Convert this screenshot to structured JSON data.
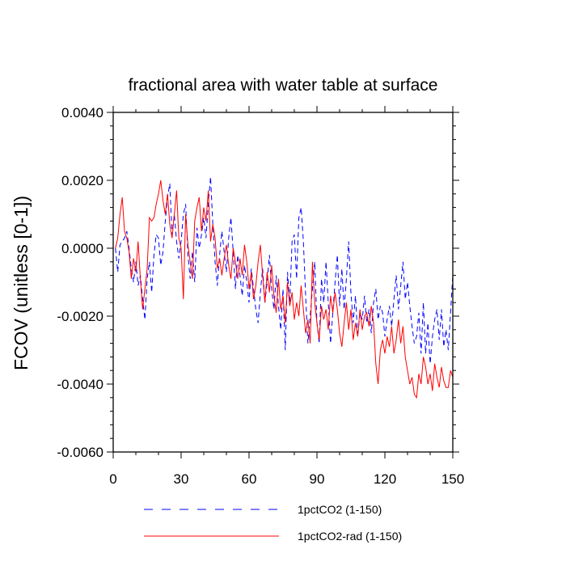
{
  "chart_data": {
    "type": "line",
    "title": "fractional area with water table at surface",
    "xlabel": "",
    "ylabel": "FCOV  (unitless [0-1])",
    "xlim": [
      0,
      150
    ],
    "ylim": [
      -0.006,
      0.004
    ],
    "x_ticks": [
      0,
      30,
      60,
      90,
      120,
      150
    ],
    "x_tick_labels": [
      "0",
      "30",
      "60",
      "90",
      "120",
      "150"
    ],
    "y_ticks": [
      -0.006,
      -0.004,
      -0.002,
      0.0,
      0.002,
      0.004
    ],
    "y_tick_labels": [
      "-0.0060",
      "-0.0040",
      "-0.0020",
      "0.0000",
      "0.0020",
      "0.0040"
    ],
    "grid": false,
    "legend_position": "bottom",
    "x": [
      1,
      2,
      3,
      4,
      5,
      6,
      7,
      8,
      9,
      10,
      11,
      12,
      13,
      14,
      15,
      16,
      17,
      18,
      19,
      20,
      21,
      22,
      23,
      24,
      25,
      26,
      27,
      28,
      29,
      30,
      31,
      32,
      33,
      34,
      35,
      36,
      37,
      38,
      39,
      40,
      41,
      42,
      43,
      44,
      45,
      46,
      47,
      48,
      49,
      50,
      51,
      52,
      53,
      54,
      55,
      56,
      57,
      58,
      59,
      60,
      61,
      62,
      63,
      64,
      65,
      66,
      67,
      68,
      69,
      70,
      71,
      72,
      73,
      74,
      75,
      76,
      77,
      78,
      79,
      80,
      81,
      82,
      83,
      84,
      85,
      86,
      87,
      88,
      89,
      90,
      91,
      92,
      93,
      94,
      95,
      96,
      97,
      98,
      99,
      100,
      101,
      102,
      103,
      104,
      105,
      106,
      107,
      108,
      109,
      110,
      111,
      112,
      113,
      114,
      115,
      116,
      117,
      118,
      119,
      120,
      121,
      122,
      123,
      124,
      125,
      126,
      127,
      128,
      129,
      130,
      131,
      132,
      133,
      134,
      135,
      136,
      137,
      138,
      139,
      140,
      141,
      142,
      143,
      144,
      145,
      146,
      147,
      148,
      149,
      150
    ],
    "series": [
      {
        "name": "1pctCO2 (1-150)",
        "color": "#0000ff",
        "dash": "dashed",
        "values": [
          0.0,
          -0.0007,
          0.0001,
          0.0002,
          0.0003,
          0.0005,
          0.0,
          -0.0006,
          -0.001,
          -0.0004,
          -0.0011,
          -0.0008,
          -0.0015,
          -0.0021,
          -0.0009,
          -0.0004,
          -0.0013,
          -0.0002,
          0.0004,
          0.0003,
          -0.0005,
          -0.0001,
          0.0008,
          0.0015,
          0.0019,
          0.0004,
          0.001,
          0.0002,
          -0.0003,
          0.0002,
          0.001,
          0.0013,
          -0.0002,
          -0.0009,
          -0.0001,
          -0.001,
          0.0006,
          0.0,
          0.0004,
          0.0009,
          0.0003,
          0.0013,
          0.0021,
          0.0007,
          -0.0004,
          -0.0011,
          -0.0002,
          0.0005,
          -0.0001,
          -0.0007,
          0.0003,
          0.0009,
          -0.0001,
          -0.0012,
          -0.0002,
          -0.0008,
          -0.0014,
          -0.0005,
          -0.001,
          -0.0016,
          -0.0006,
          -0.0012,
          -0.0018,
          -0.0022,
          -0.0013,
          -0.0006,
          -0.0016,
          -0.001,
          -0.0002,
          -0.0012,
          -0.0018,
          -0.0008,
          -0.0017,
          -0.0024,
          -0.0012,
          -0.003,
          -0.0007,
          -0.0016,
          0.0002,
          0.0004,
          -0.0009,
          0.0009,
          0.0012,
          0.0002,
          -0.0014,
          -0.0028,
          -0.002,
          -0.0012,
          -0.0004,
          -0.0022,
          -0.0028,
          -0.0009,
          -0.0016,
          -0.0004,
          -0.0016,
          -0.0028,
          -0.0019,
          -0.001,
          -0.0002,
          -0.0017,
          -0.0006,
          -0.0018,
          -0.0009,
          0.0002,
          -0.0013,
          -0.0022,
          -0.0014,
          -0.0026,
          -0.0019,
          -0.0021,
          -0.0014,
          -0.0022,
          -0.0018,
          -0.0025,
          -0.0016,
          -0.0012,
          -0.0021,
          -0.0017,
          -0.0019,
          -0.0026,
          -0.0021,
          -0.0017,
          -0.0023,
          -0.0015,
          -0.0008,
          -0.0018,
          -0.0011,
          -0.0004,
          -0.0015,
          -0.001,
          -0.0017,
          -0.0023,
          -0.0028,
          -0.0026,
          -0.0019,
          -0.0031,
          -0.0016,
          -0.0031,
          -0.0022,
          -0.0034,
          -0.0026,
          -0.0021,
          -0.0018,
          -0.0027,
          -0.0018,
          -0.0029,
          -0.0024,
          -0.003,
          -0.0019,
          -0.0008
        ]
      },
      {
        "name": "1pctCO2-rad (1-150)",
        "color": "#ff0000",
        "dash": "solid",
        "values": [
          0.0,
          0.0003,
          0.001,
          0.0015,
          0.0005,
          0.0003,
          -0.0001,
          -0.0009,
          -0.0003,
          -0.0007,
          0.0002,
          -0.0009,
          -0.0018,
          -0.0012,
          -0.0006,
          0.0009,
          0.0008,
          0.0009,
          0.0013,
          0.0016,
          0.002,
          0.0014,
          0.001,
          0.0016,
          0.0007,
          0.0003,
          0.001,
          0.0017,
          0.0003,
          0.0,
          -0.0015,
          0.001,
          0.0001,
          -0.0004,
          -0.0009,
          0.0008,
          0.0012,
          0.0015,
          0.0005,
          0.0012,
          0.0008,
          0.0017,
          0.0002,
          0.0007,
          0.0003,
          -0.0006,
          -0.0003,
          -0.0008,
          -0.0003,
          0.0001,
          -0.0005,
          -0.0009,
          0.0,
          -0.0004,
          -0.0009,
          -0.0003,
          -0.0008,
          0.0001,
          -0.0004,
          -0.0012,
          -0.0007,
          -0.0015,
          -0.0011,
          -0.0004,
          0.0001,
          -0.0008,
          -0.0016,
          -0.0007,
          -0.0013,
          -0.0005,
          -0.0014,
          -0.0019,
          -0.0009,
          -0.0018,
          -0.0014,
          -0.0022,
          -0.001,
          -0.0017,
          -0.0013,
          -0.0021,
          -0.0016,
          -0.002,
          -0.0011,
          -0.0018,
          -0.0025,
          -0.0021,
          -0.0028,
          -0.0004,
          -0.0016,
          -0.0022,
          -0.0027,
          -0.0017,
          -0.0021,
          -0.0018,
          -0.0024,
          -0.0014,
          -0.0019,
          -0.0013,
          -0.0018,
          -0.0025,
          -0.0029,
          -0.0022,
          -0.0016,
          -0.0024,
          -0.0018,
          -0.0027,
          -0.0022,
          -0.0026,
          -0.0018,
          -0.0024,
          -0.002,
          -0.0019,
          -0.0023,
          -0.0017,
          -0.0022,
          -0.0034,
          -0.004,
          -0.003,
          -0.0027,
          -0.0031,
          -0.0026,
          -0.0029,
          -0.0023,
          -0.0031,
          -0.0027,
          -0.0021,
          -0.0028,
          -0.0023,
          -0.0032,
          -0.0036,
          -0.004,
          -0.0038,
          -0.0043,
          -0.0044,
          -0.0037,
          -0.004,
          -0.0032,
          -0.0035,
          -0.004,
          -0.0037,
          -0.0042,
          -0.0034,
          -0.0038,
          -0.0041,
          -0.0035,
          -0.0039,
          -0.0041,
          -0.0041,
          -0.0036,
          -0.0038
        ]
      }
    ]
  }
}
